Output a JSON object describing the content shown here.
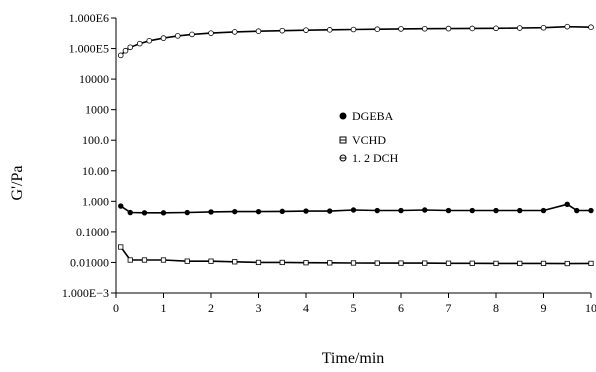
{
  "chart_data": {
    "type": "line",
    "title": "",
    "xlabel": "Time/min",
    "ylabel": "G'/Pa",
    "xlim": [
      0,
      10
    ],
    "ylim": [
      0.001,
      1000000
    ],
    "yscale": "log",
    "grid": false,
    "legend_position": "center-right",
    "x_ticks": [
      0,
      1,
      2,
      3,
      4,
      5,
      6,
      7,
      8,
      9,
      10
    ],
    "x_tick_labels": [
      "0",
      "1",
      "2",
      "3",
      "4",
      "5",
      "6",
      "7",
      "8",
      "9",
      "10"
    ],
    "y_ticks": [
      1000000,
      100000,
      10000,
      1000,
      100,
      10,
      1,
      0.1,
      0.01,
      0.001
    ],
    "y_tick_labels": [
      "1.000E6",
      "1.000E5",
      "10000",
      "1000",
      "100.0",
      "10.00",
      "1.000",
      "0.1000",
      "0.01000",
      "1.000E−3"
    ],
    "series": [
      {
        "name": "DGEBA",
        "marker": "filled-circle",
        "color": "#000000",
        "x": [
          0.1,
          0.3,
          0.6,
          1.0,
          1.5,
          2.0,
          2.5,
          3.0,
          3.5,
          4.0,
          4.5,
          5.0,
          5.5,
          6.0,
          6.5,
          7.0,
          7.5,
          8.0,
          8.5,
          9.0,
          9.5,
          9.7,
          10.0
        ],
        "y": [
          0.7,
          0.43,
          0.42,
          0.42,
          0.43,
          0.45,
          0.46,
          0.46,
          0.47,
          0.48,
          0.48,
          0.52,
          0.5,
          0.5,
          0.52,
          0.5,
          0.5,
          0.5,
          0.5,
          0.5,
          0.8,
          0.5,
          0.5
        ]
      },
      {
        "name": "VCHD",
        "marker": "open-square",
        "color": "#000000",
        "x": [
          0.1,
          0.3,
          0.6,
          1.0,
          1.5,
          2.0,
          2.5,
          3.0,
          3.5,
          4.0,
          4.5,
          5.0,
          5.5,
          6.0,
          6.5,
          7.0,
          7.5,
          8.0,
          8.5,
          9.0,
          9.5,
          10.0
        ],
        "y": [
          0.032,
          0.012,
          0.012,
          0.012,
          0.011,
          0.011,
          0.0105,
          0.01,
          0.01,
          0.0098,
          0.0097,
          0.0096,
          0.0095,
          0.0095,
          0.0095,
          0.0094,
          0.0094,
          0.0093,
          0.0093,
          0.0093,
          0.0092,
          0.0093
        ]
      },
      {
        "name": "1. 2 DCH",
        "marker": "open-circle",
        "color": "#000000",
        "x": [
          0.1,
          0.2,
          0.3,
          0.5,
          0.7,
          1.0,
          1.3,
          1.6,
          2.0,
          2.5,
          3.0,
          3.5,
          4.0,
          4.5,
          5.0,
          5.5,
          6.0,
          6.5,
          7.0,
          7.5,
          8.0,
          8.5,
          9.0,
          9.5,
          10.0
        ],
        "y": [
          60000,
          85000,
          110000,
          145000,
          180000,
          220000,
          260000,
          290000,
          320000,
          350000,
          370000,
          385000,
          400000,
          410000,
          420000,
          430000,
          440000,
          445000,
          450000,
          455000,
          460000,
          470000,
          480000,
          520000,
          500000
        ]
      }
    ]
  }
}
